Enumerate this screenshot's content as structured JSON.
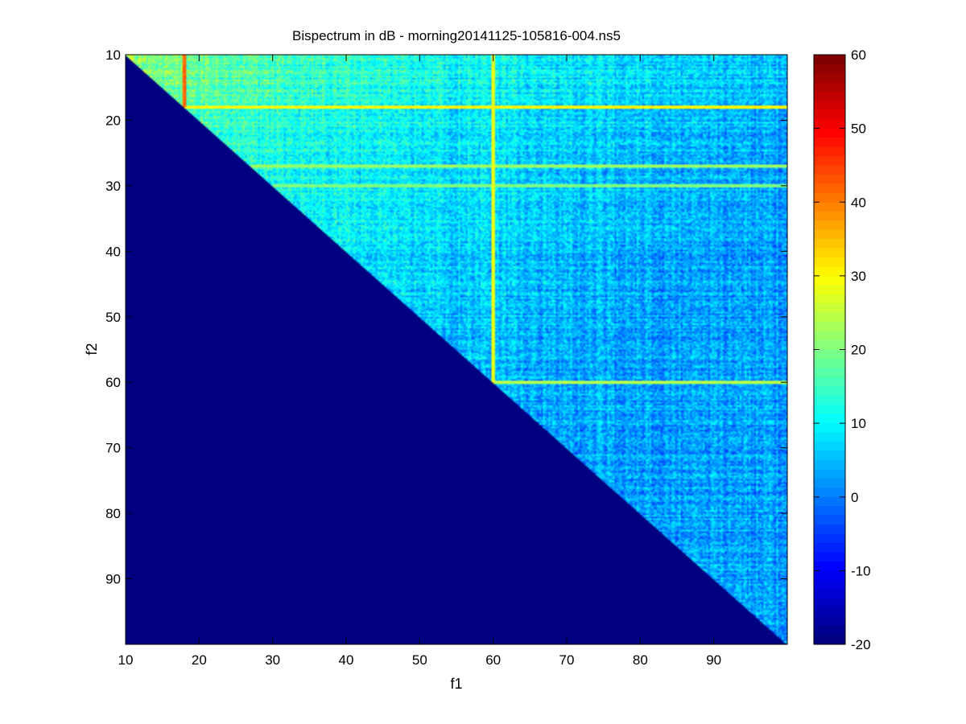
{
  "chart_data": {
    "type": "heatmap",
    "title": "Bispectrum in dB - morning20141125-105816-004.ns5",
    "xlabel": "f1",
    "ylabel": "f2",
    "x_range": [
      10,
      100
    ],
    "y_range": [
      10,
      100
    ],
    "y_axis_reversed": true,
    "x_ticks": [
      "10",
      "20",
      "30",
      "40",
      "50",
      "60",
      "70",
      "80",
      "90"
    ],
    "y_ticks": [
      "10",
      "20",
      "30",
      "40",
      "50",
      "60",
      "70",
      "80",
      "90"
    ],
    "colorbar": {
      "colormap": "jet",
      "range": [
        -20,
        60
      ],
      "ticks": [
        "60",
        "50",
        "40",
        "30",
        "20",
        "10",
        "0",
        "-10",
        "-20"
      ],
      "placement": "right"
    },
    "lower_triangle_fill_db": -20,
    "features": [
      {
        "kind": "line",
        "orientation": "horizontal",
        "f2": 18,
        "value_db": 30
      },
      {
        "kind": "line",
        "orientation": "vertical",
        "f1": 18,
        "value_db": 42
      },
      {
        "kind": "line",
        "orientation": "vertical",
        "f1": 60,
        "value_db": 28
      },
      {
        "kind": "line",
        "orientation": "horizontal",
        "f2": 60,
        "value_db": 24
      },
      {
        "kind": "line",
        "orientation": "horizontal",
        "f2": 27,
        "value_db": 22
      },
      {
        "kind": "line",
        "orientation": "horizontal",
        "f2": 30,
        "value_db": 20
      }
    ],
    "background_db": {
      "near_origin": 25,
      "far_corner": 3
    },
    "grid": false,
    "colors": {
      "background": "#ffffff",
      "lower_triangle": "#00008f"
    }
  }
}
